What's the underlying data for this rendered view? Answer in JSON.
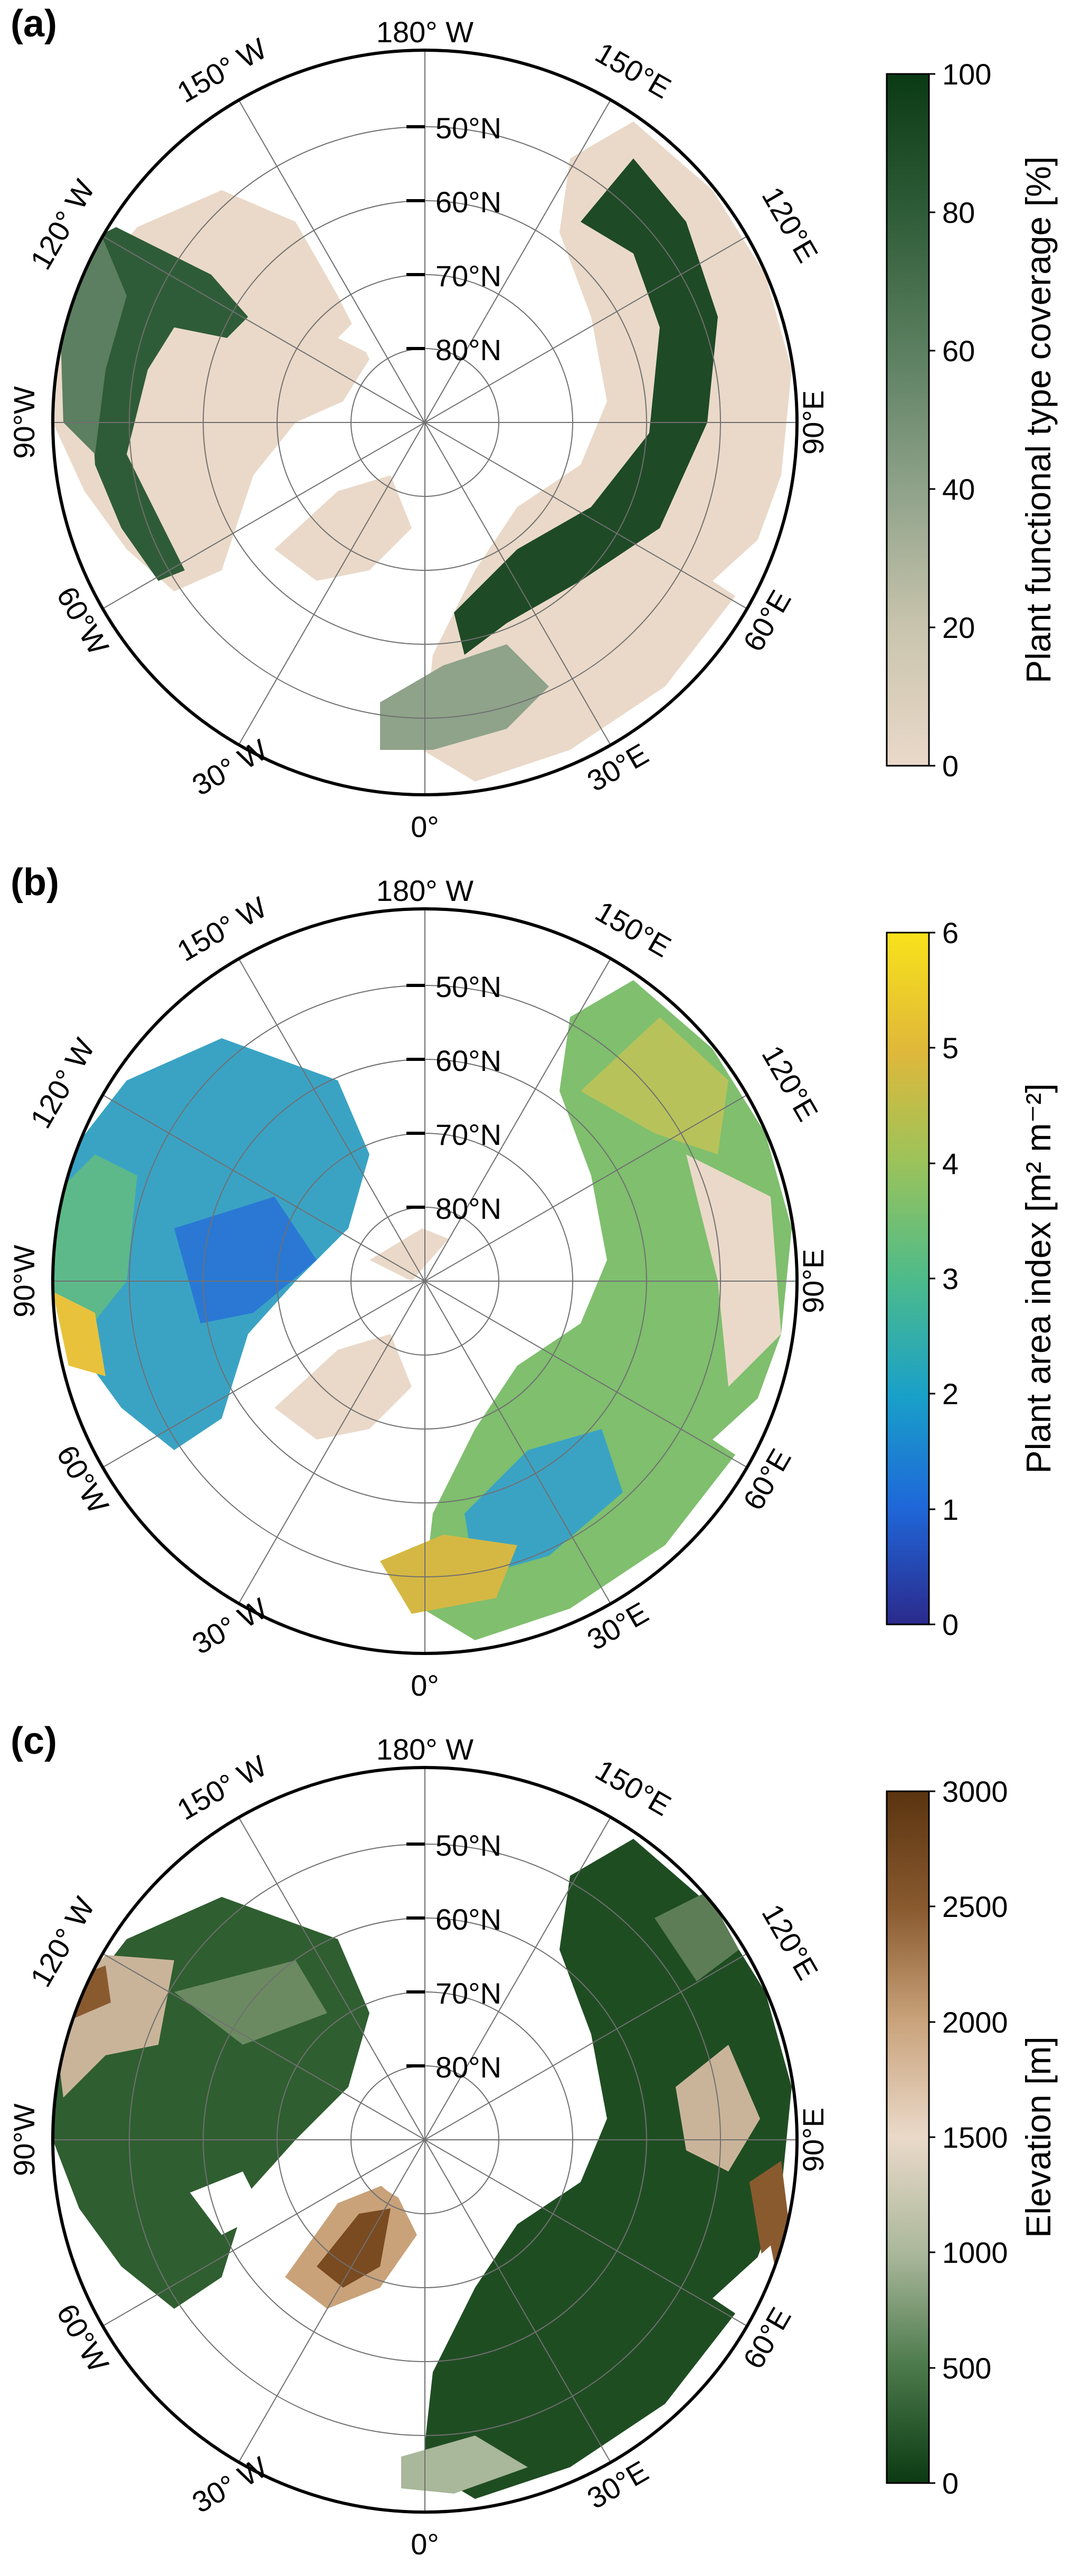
{
  "panels": [
    {
      "letter": "(a)",
      "colorbar": {
        "label": "Plant functional type coverage [%]",
        "ticks": [
          "0",
          "20",
          "40",
          "60",
          "80",
          "100"
        ],
        "colors": [
          "#ead9c9",
          "#c9c4ad",
          "#8fa28a",
          "#5b7f60",
          "#2f5c38",
          "#0a3a14"
        ]
      },
      "lat_labels": [
        "50°N",
        "60°N",
        "70°N",
        "80°N"
      ],
      "lon_labels": {
        "top": "180° W",
        "bottom": "0°",
        "left": "90°W",
        "right": "90°E",
        "l1": "150° W",
        "l2": "120° W",
        "l3": "60°W",
        "l4": "30° W",
        "r1": "150°E",
        "r2": "120°E",
        "r3": "60°E",
        "r4": "30°E"
      }
    },
    {
      "letter": "(b)",
      "colorbar": {
        "label": "Plant area index [m² m⁻²]",
        "ticks": [
          "0",
          "1",
          "2",
          "3",
          "4",
          "5",
          "6"
        ],
        "colors": [
          "#2b2a8c",
          "#1f67d9",
          "#19a0c9",
          "#4dbb8a",
          "#9cc35a",
          "#e0b83a",
          "#f8e21a"
        ]
      },
      "lat_labels": [
        "50°N",
        "60°N",
        "70°N",
        "80°N"
      ],
      "lon_labels": {
        "top": "180° W",
        "bottom": "0°",
        "left": "90°W",
        "right": "90°E",
        "l1": "150° W",
        "l2": "120° W",
        "l3": "60°W",
        "l4": "30° W",
        "r1": "150°E",
        "r2": "120°E",
        "r3": "60°E",
        "r4": "30°E"
      }
    },
    {
      "letter": "(c)",
      "colorbar": {
        "label": "Elevation [m]",
        "ticks": [
          "0",
          "500",
          "1000",
          "1500",
          "2000",
          "2500",
          "3000"
        ],
        "colors": [
          "#0b3a12",
          "#4c7a4c",
          "#a9b79a",
          "#ead9c9",
          "#c9a27a",
          "#8a5a2f",
          "#5a3410"
        ]
      },
      "lat_labels": [
        "50°N",
        "60°N",
        "70°N",
        "80°N"
      ],
      "lon_labels": {
        "top": "180° W",
        "bottom": "0°",
        "left": "90°W",
        "right": "90°E",
        "l1": "150° W",
        "l2": "120° W",
        "l3": "60°W",
        "l4": "30° W",
        "r1": "150°E",
        "r2": "120°E",
        "r3": "60°E",
        "r4": "30°E"
      }
    }
  ]
}
